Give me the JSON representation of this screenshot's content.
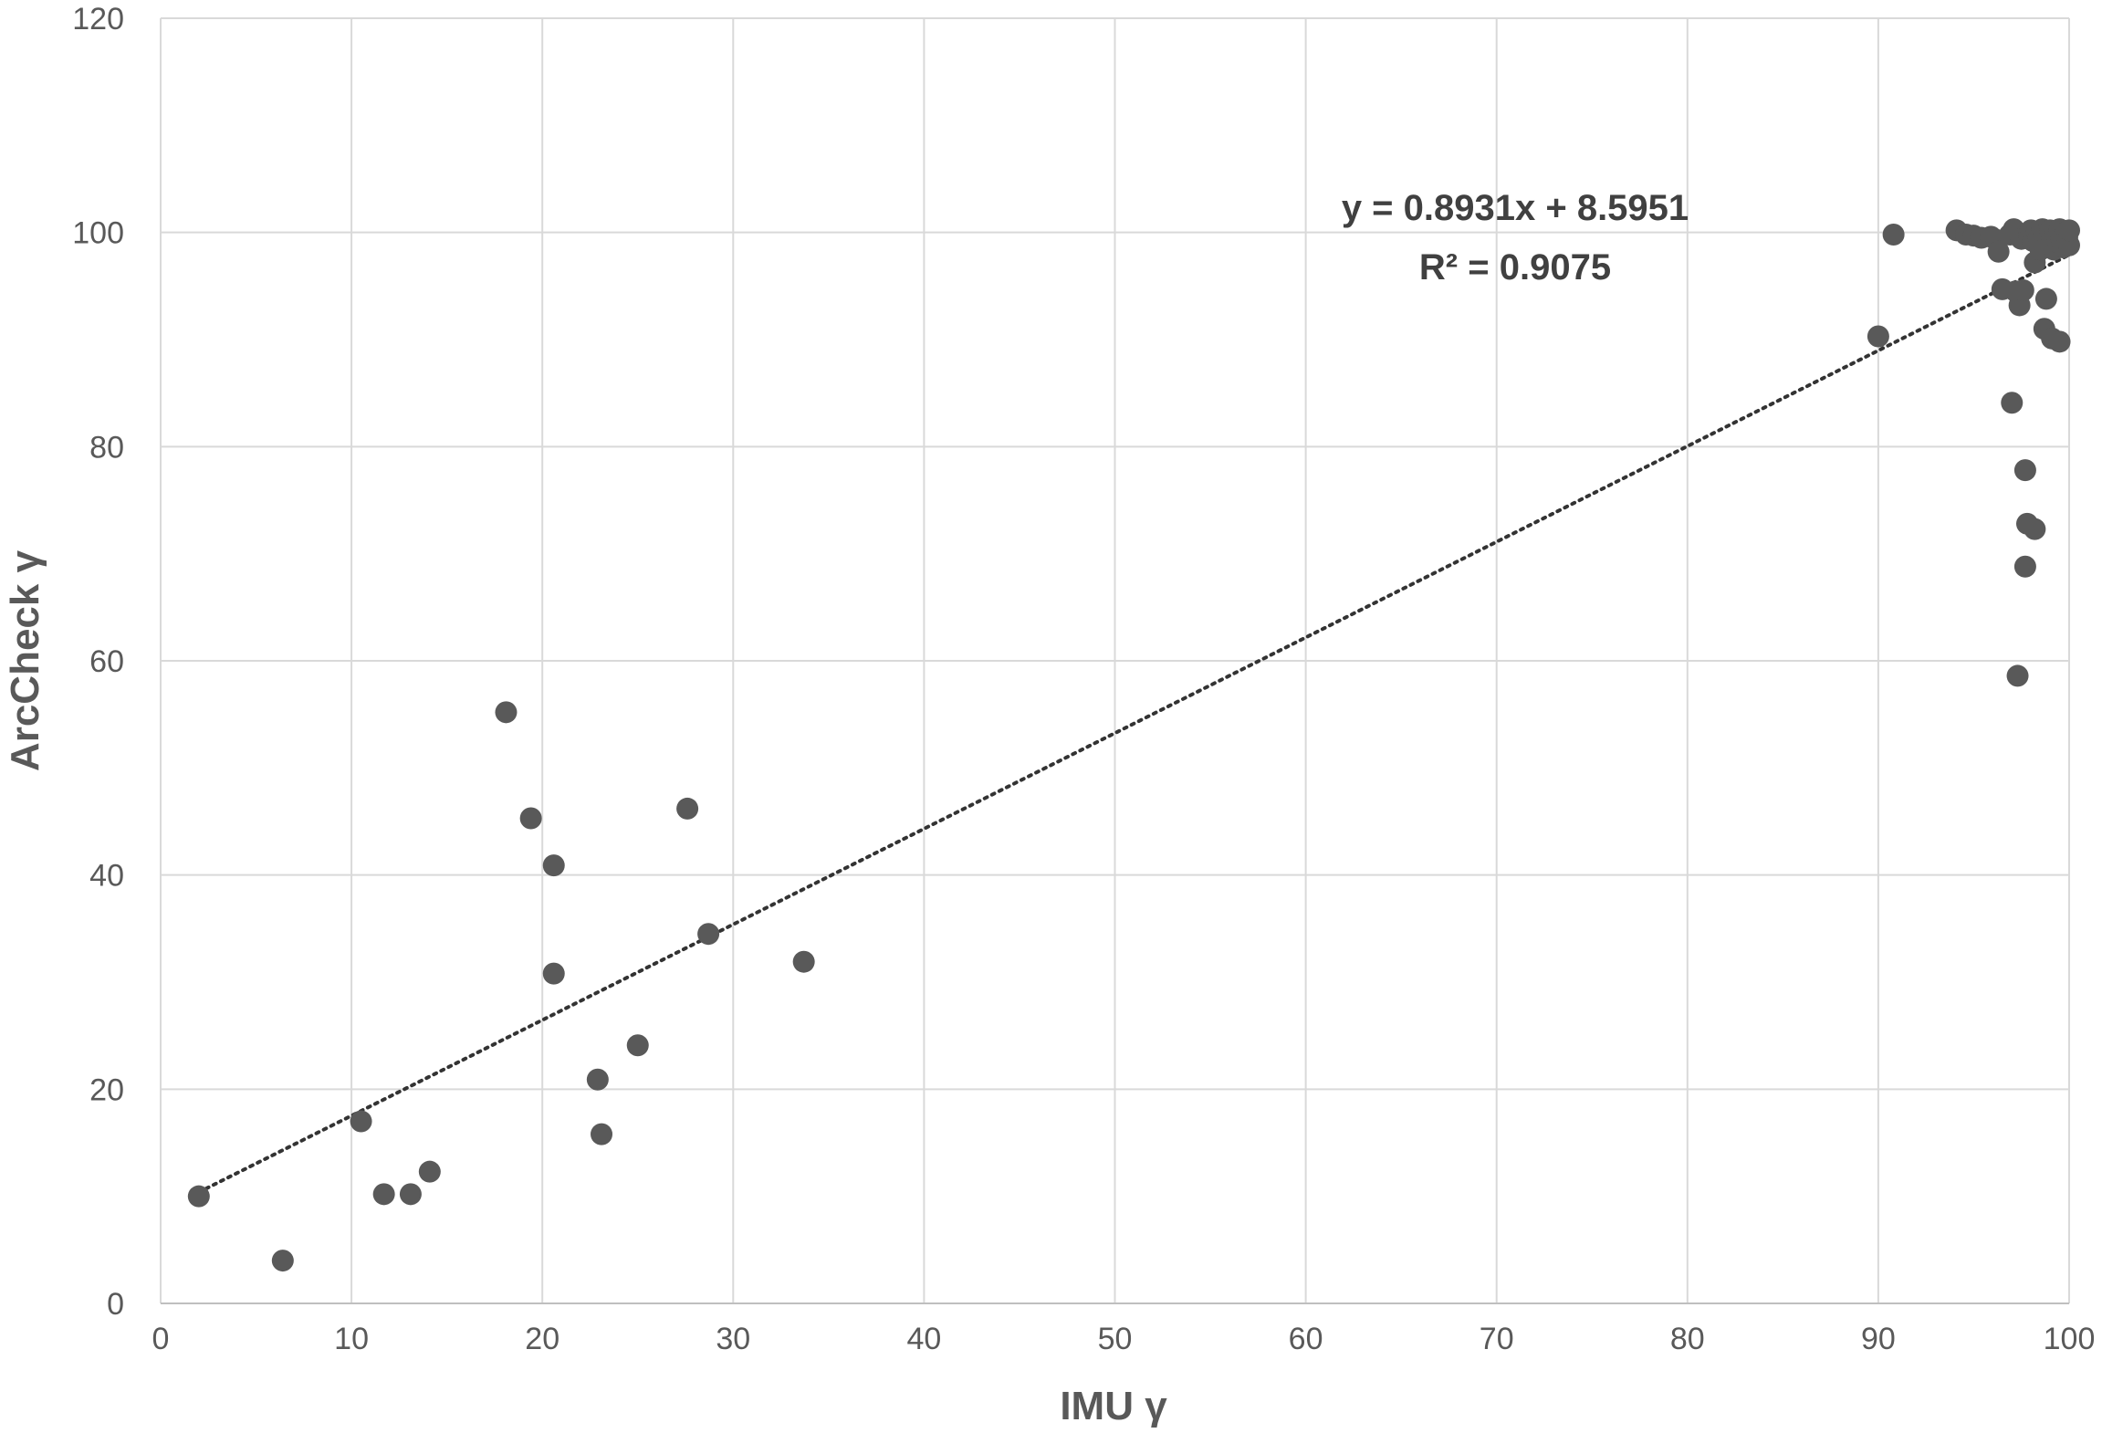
{
  "chart_data": {
    "type": "scatter",
    "title": "",
    "xlabel": "IMU γ",
    "ylabel": "ArcCheck γ",
    "xlim": [
      0,
      100
    ],
    "ylim": [
      0,
      120
    ],
    "x_ticks": [
      "0",
      "10",
      "20",
      "30",
      "40",
      "50",
      "60",
      "70",
      "80",
      "90",
      "100"
    ],
    "y_ticks": [
      "0",
      "20",
      "40",
      "60",
      "80",
      "100",
      "120"
    ],
    "grid": true,
    "legend": "none",
    "marker_color": "#595959",
    "trendline": {
      "type": "linear",
      "slope": 0.8931,
      "intercept": 8.5951,
      "x_range": [
        2,
        100
      ],
      "style": "dotted",
      "color": "#333333",
      "equation_label": "y = 0.8931x + 8.5951",
      "r2_label": "R² = 0.9075"
    },
    "series": [
      {
        "points": [
          [
            2,
            10
          ],
          [
            6.4,
            4
          ],
          [
            10.5,
            17
          ],
          [
            11.7,
            10.2
          ],
          [
            13.1,
            10.2
          ],
          [
            14.1,
            12.3
          ],
          [
            18.1,
            55.2
          ],
          [
            19.4,
            45.3
          ],
          [
            20.6,
            40.9
          ],
          [
            20.6,
            30.8
          ],
          [
            22.9,
            20.9
          ],
          [
            23.1,
            15.8
          ],
          [
            25,
            24.1
          ],
          [
            27.6,
            46.2
          ],
          [
            28.7,
            34.5
          ],
          [
            33.7,
            31.9
          ],
          [
            90,
            90.3
          ],
          [
            90.8,
            99.8
          ],
          [
            94.1,
            100.2
          ],
          [
            94.6,
            99.8
          ],
          [
            95,
            99.7
          ],
          [
            95.4,
            99.5
          ],
          [
            95.9,
            99.6
          ],
          [
            96.2,
            99.3
          ],
          [
            96.3,
            98.2
          ],
          [
            96.5,
            94.7
          ],
          [
            96.9,
            99.8
          ],
          [
            97,
            84.1
          ],
          [
            97.1,
            100.3
          ],
          [
            97.2,
            94.5
          ],
          [
            97.3,
            58.6
          ],
          [
            97.4,
            93.2
          ],
          [
            97.5,
            99.4
          ],
          [
            97.6,
            94.6
          ],
          [
            97.7,
            77.8
          ],
          [
            97.7,
            68.8
          ],
          [
            97.8,
            72.8
          ],
          [
            97.9,
            99.8
          ],
          [
            98,
            100.2
          ],
          [
            98.1,
            99.2
          ],
          [
            98.2,
            72.3
          ],
          [
            98.2,
            97.2
          ],
          [
            98.3,
            100.1
          ],
          [
            98.4,
            99.5
          ],
          [
            98.5,
            98.4
          ],
          [
            98.6,
            100.3
          ],
          [
            98.7,
            91
          ],
          [
            98.7,
            99.8
          ],
          [
            98.8,
            93.8
          ],
          [
            98.9,
            98.9
          ],
          [
            99,
            100.2
          ],
          [
            99.1,
            90.1
          ],
          [
            99.1,
            99.6
          ],
          [
            99.2,
            98.4
          ],
          [
            99.3,
            100.1
          ],
          [
            99.4,
            99.1
          ],
          [
            99.5,
            89.8
          ],
          [
            99.5,
            100.3
          ],
          [
            99.6,
            99.4
          ],
          [
            99.7,
            98.6
          ],
          [
            99.8,
            100
          ],
          [
            99.9,
            99.5
          ],
          [
            100,
            98.8
          ],
          [
            100,
            100.2
          ]
        ]
      }
    ]
  }
}
